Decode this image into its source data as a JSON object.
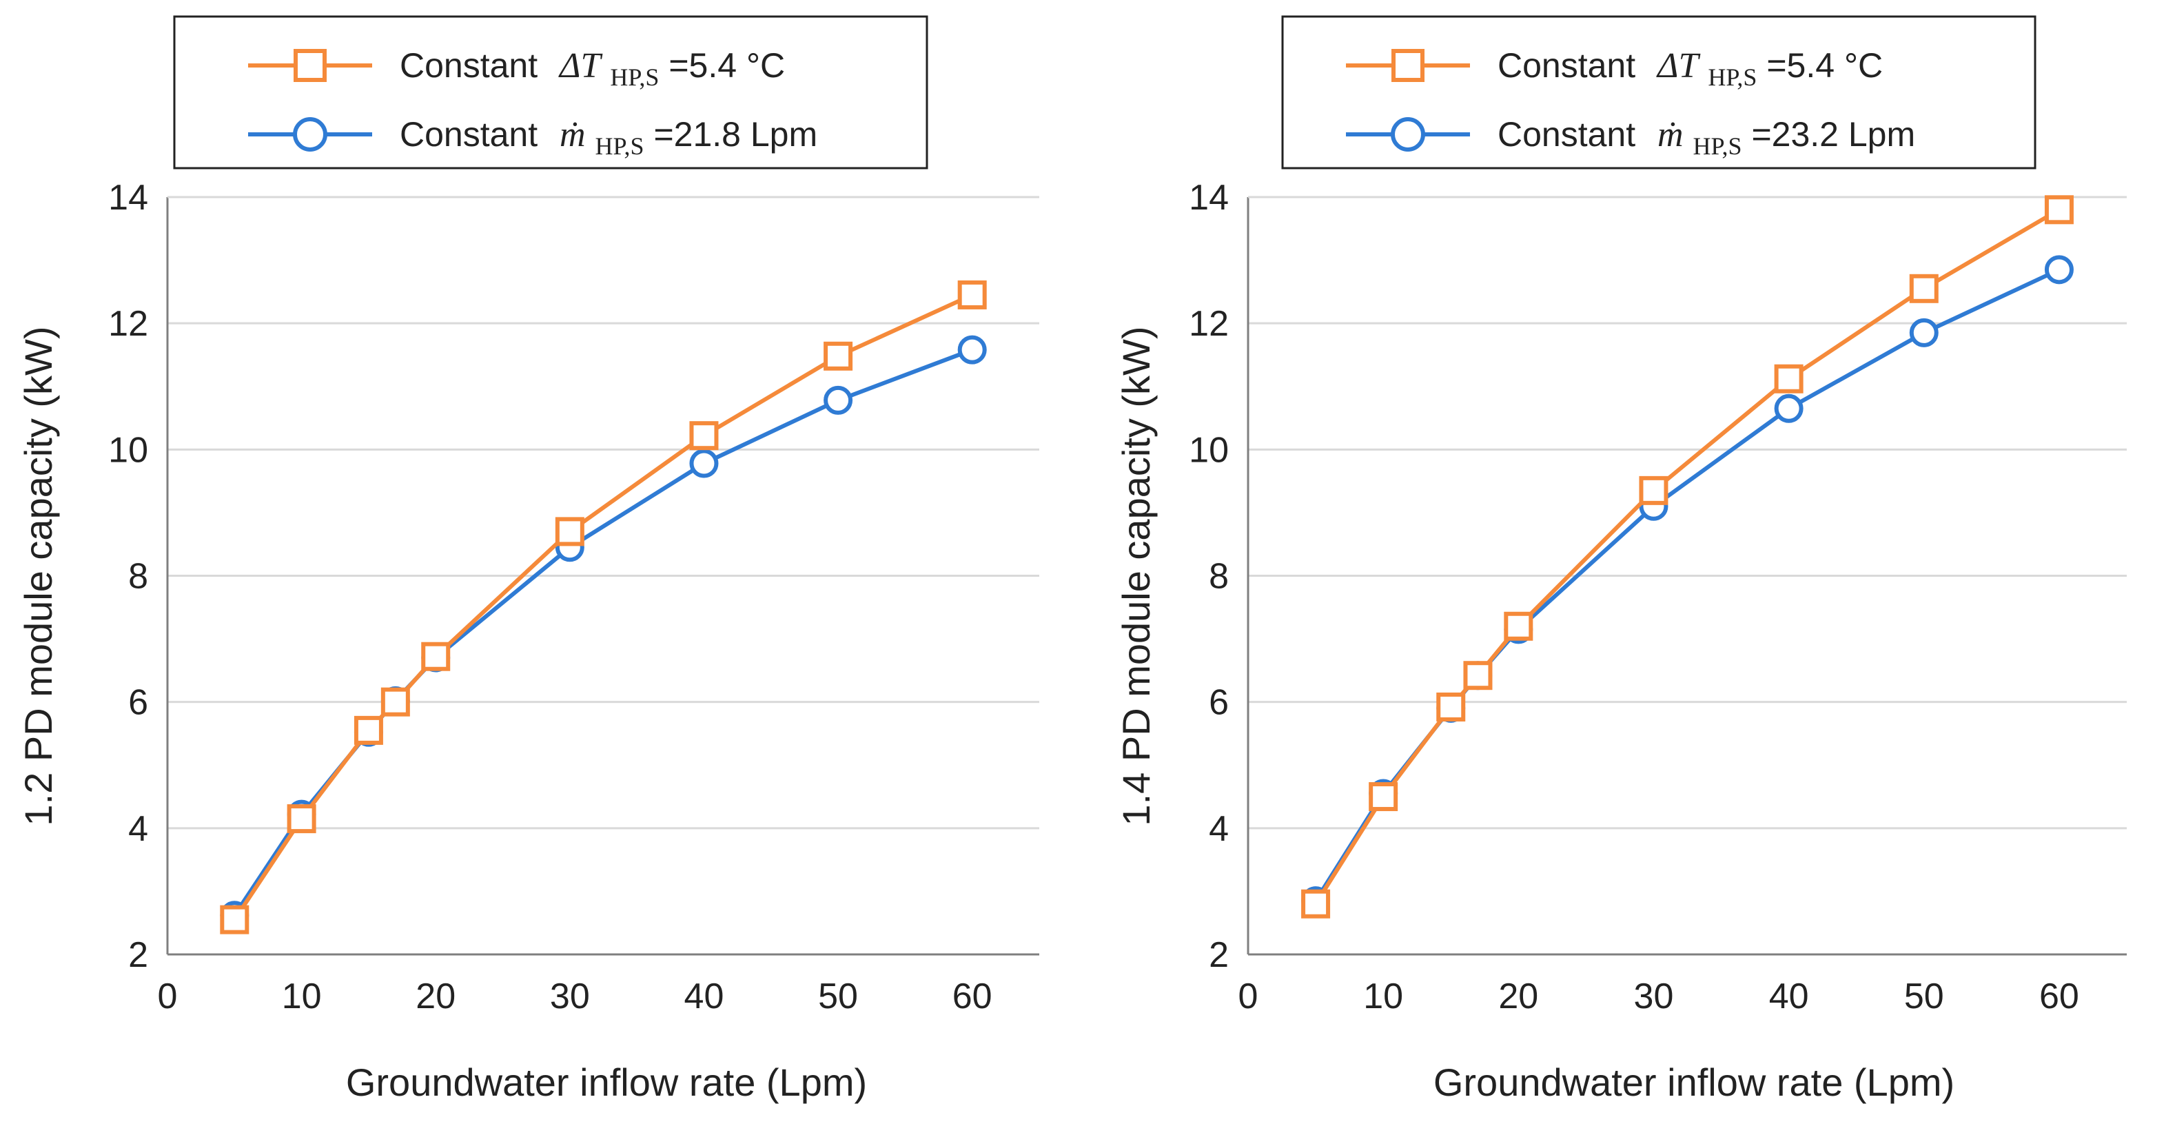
{
  "colors": {
    "series_a": "#F58A3A",
    "series_b": "#2F7BD4",
    "grid": "#d9d9d9",
    "axis": "#7f7f7f",
    "text": "#222222"
  },
  "chart_data": [
    {
      "type": "line",
      "xlabel": "Groundwater inflow rate (Lpm)",
      "ylabel": "1.2 PD module capacity (kW)",
      "xlim": [
        0,
        65
      ],
      "ylim": [
        2,
        14
      ],
      "xticks": [
        "0",
        "10",
        "20",
        "30",
        "40",
        "50",
        "60"
      ],
      "yticks": [
        "2",
        "4",
        "6",
        "8",
        "10",
        "12",
        "14"
      ],
      "grid": "horizontal",
      "legend_position": "top",
      "series": [
        {
          "name": "Constant ΔT_HP,S=5.4 °C",
          "legend_prefix": "Constant",
          "legend_symbol": "ΔT",
          "legend_subscript": "HP,S",
          "legend_suffix": "=5.4 °C",
          "marker": "square",
          "color": "#F58A3A",
          "x": [
            5,
            10,
            15,
            17,
            20,
            30,
            40,
            50,
            60
          ],
          "values": [
            2.55,
            4.15,
            5.55,
            6.0,
            6.72,
            8.7,
            10.22,
            11.48,
            12.45
          ]
        },
        {
          "name": "Constant ṁ_HP,S=21.8 Lpm",
          "legend_prefix": "Constant",
          "legend_symbol": "ṁ",
          "legend_subscript": "HP,S",
          "legend_suffix": "=21.8 Lpm",
          "marker": "circle",
          "color": "#2F7BD4",
          "x": [
            5,
            10,
            15,
            17,
            20,
            30,
            40,
            50,
            60
          ],
          "values": [
            2.62,
            4.22,
            5.52,
            6.02,
            6.7,
            8.45,
            9.78,
            10.78,
            11.58
          ]
        }
      ]
    },
    {
      "type": "line",
      "xlabel": "Groundwater inflow rate (Lpm)",
      "ylabel": "1.4 PD module capacity (kW)",
      "xlim": [
        0,
        65
      ],
      "ylim": [
        2,
        14
      ],
      "xticks": [
        "0",
        "10",
        "20",
        "30",
        "40",
        "50",
        "60"
      ],
      "yticks": [
        "2",
        "4",
        "6",
        "8",
        "10",
        "12",
        "14"
      ],
      "grid": "horizontal",
      "legend_position": "top",
      "series": [
        {
          "name": "Constant ΔT_HP,S=5.4 °C",
          "legend_prefix": "Constant",
          "legend_symbol": "ΔT",
          "legend_subscript": "HP,S",
          "legend_suffix": "=5.4 °C",
          "marker": "square",
          "color": "#F58A3A",
          "x": [
            5,
            10,
            15,
            17,
            20,
            30,
            40,
            50,
            60
          ],
          "values": [
            2.8,
            4.5,
            5.92,
            6.42,
            7.2,
            9.35,
            11.12,
            12.55,
            13.8
          ]
        },
        {
          "name": "Constant ṁ_HP,S=23.2 Lpm",
          "legend_prefix": "Constant",
          "legend_symbol": "ṁ",
          "legend_subscript": "HP,S",
          "legend_suffix": "=23.2 Lpm",
          "marker": "circle",
          "color": "#2F7BD4",
          "x": [
            5,
            10,
            15,
            17,
            20,
            30,
            40,
            50,
            60
          ],
          "values": [
            2.85,
            4.55,
            5.9,
            6.42,
            7.15,
            9.1,
            10.65,
            11.85,
            12.85
          ]
        }
      ]
    }
  ]
}
